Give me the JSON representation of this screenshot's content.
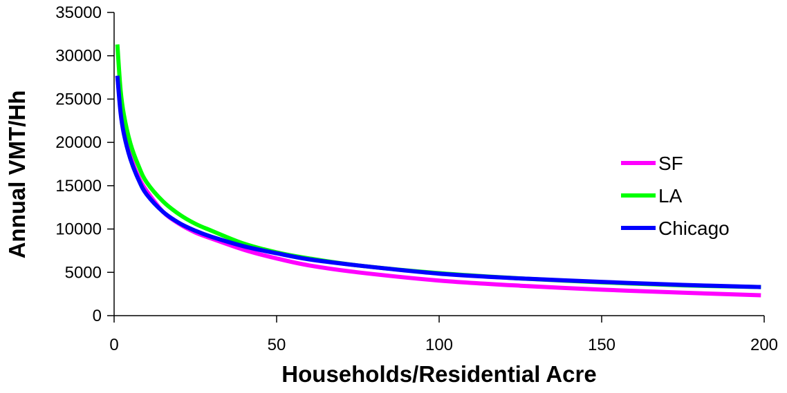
{
  "chart_data": {
    "type": "line",
    "title": "",
    "xlabel": "Households/Residential Acre",
    "ylabel": "Annual VMT/Hh",
    "xlim": [
      0,
      200
    ],
    "ylim": [
      0,
      35000
    ],
    "x_ticks": [
      0,
      50,
      100,
      150,
      200
    ],
    "y_ticks": [
      0,
      5000,
      10000,
      15000,
      20000,
      25000,
      30000,
      35000
    ],
    "grid": false,
    "legend_position": "right",
    "x": [
      1,
      2,
      3,
      5,
      7.5,
      10,
      15,
      20,
      25,
      30,
      40,
      50,
      60,
      75,
      100,
      125,
      150,
      175,
      199
    ],
    "series": [
      {
        "name": "SF",
        "color": "#FF00FF",
        "values": [
          27600,
          24100,
          21500,
          18500,
          16000,
          14400,
          12000,
          10600,
          9600,
          8900,
          7600,
          6600,
          5800,
          5000,
          4050,
          3450,
          3000,
          2650,
          2350
        ]
      },
      {
        "name": "LA",
        "color": "#00FF00",
        "values": [
          31300,
          26000,
          23200,
          19900,
          17300,
          15400,
          13200,
          11700,
          10600,
          9800,
          8300,
          7300,
          6600,
          5800,
          4900,
          4300,
          3850,
          3500,
          3300
        ]
      },
      {
        "name": "Chicago",
        "color": "#0000FF",
        "values": [
          27700,
          23400,
          21000,
          18100,
          15700,
          14000,
          12000,
          10700,
          9800,
          9100,
          8000,
          7200,
          6500,
          5800,
          4850,
          4300,
          3900,
          3550,
          3300
        ]
      }
    ]
  }
}
